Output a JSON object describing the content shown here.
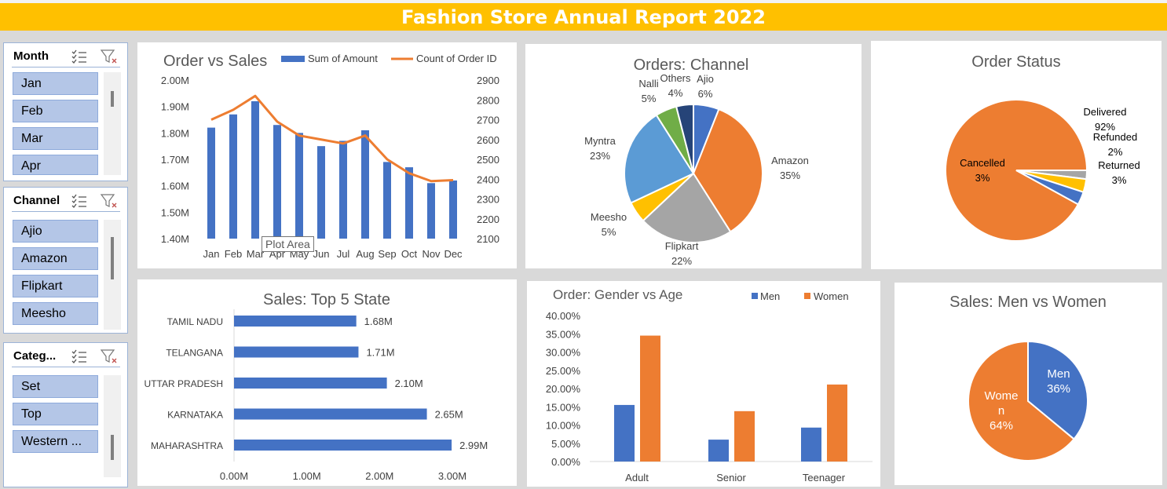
{
  "title": "Fashion Store Annual Report 2022",
  "slicers": [
    {
      "title": "Month",
      "items": [
        "Jan",
        "Feb",
        "Mar",
        "Apr"
      ]
    },
    {
      "title": "Channel",
      "items": [
        "Ajio",
        "Amazon",
        "Flipkart",
        "Meesho"
      ]
    },
    {
      "title": "Categ...",
      "items": [
        "Set",
        "Top",
        "Western ..."
      ]
    }
  ],
  "tooltip": "Plot Area",
  "colors": {
    "blue": "#4472c4",
    "orange": "#ed7d31",
    "gray": "#a5a5a5",
    "yellow": "#ffc000",
    "lightblue": "#5b9bd5",
    "green": "#70ad47",
    "navy": "#264478",
    "banner": "#ffc000"
  },
  "chart_data": [
    {
      "type": "bar+line",
      "title": "Order vs Sales",
      "categories": [
        "Jan",
        "Feb",
        "Mar",
        "Apr",
        "May",
        "Jun",
        "Jul",
        "Aug",
        "Sep",
        "Oct",
        "Nov",
        "Dec"
      ],
      "series": [
        {
          "name": "Sum of Amount",
          "type": "bar",
          "axis": "left",
          "values": [
            1.82,
            1.87,
            1.92,
            1.83,
            1.8,
            1.75,
            1.77,
            1.81,
            1.69,
            1.67,
            1.61,
            1.62
          ]
        },
        {
          "name": "Count of Order ID",
          "type": "line",
          "axis": "right",
          "values": [
            2700,
            2750,
            2820,
            2690,
            2620,
            2600,
            2580,
            2620,
            2500,
            2430,
            2390,
            2395
          ]
        }
      ],
      "left_ticks": [
        "1.40M",
        "1.50M",
        "1.60M",
        "1.70M",
        "1.80M",
        "1.90M",
        "2.00M"
      ],
      "right_ticks": [
        "2100",
        "2200",
        "2300",
        "2400",
        "2500",
        "2600",
        "2700",
        "2800",
        "2900"
      ],
      "ylim": [
        1.4,
        2.0
      ],
      "y2lim": [
        2100,
        2900
      ]
    },
    {
      "type": "pie",
      "title": "Orders: Channel",
      "slices": [
        {
          "name": "Ajio",
          "value": 6,
          "label": "6%"
        },
        {
          "name": "Amazon",
          "value": 35,
          "label": "35%"
        },
        {
          "name": "Flipkart",
          "value": 22,
          "label": "22%"
        },
        {
          "name": "Meesho",
          "value": 5,
          "label": "5%"
        },
        {
          "name": "Myntra",
          "value": 23,
          "label": "23%"
        },
        {
          "name": "Nalli",
          "value": 5,
          "label": "5%"
        },
        {
          "name": "Others",
          "value": 4,
          "label": "4%"
        }
      ]
    },
    {
      "type": "pie",
      "title": "Order Status",
      "slices": [
        {
          "name": "Delivered",
          "value": 92,
          "label": "92%"
        },
        {
          "name": "Refunded",
          "value": 2,
          "label": "2%"
        },
        {
          "name": "Returned",
          "value": 3,
          "label": "3%"
        },
        {
          "name": "Cancelled",
          "value": 3,
          "label": "3%"
        }
      ]
    },
    {
      "type": "bar",
      "orientation": "horizontal",
      "title": "Sales: Top 5 State",
      "categories": [
        "TAMIL NADU",
        "TELANGANA",
        "UTTAR PRADESH",
        "KARNATAKA",
        "MAHARASHTRA"
      ],
      "values": [
        1.68,
        1.71,
        2.1,
        2.65,
        2.99
      ],
      "labels": [
        "1.68M",
        "1.71M",
        "2.10M",
        "2.65M",
        "2.99M"
      ],
      "x_ticks": [
        "0.00M",
        "1.00M",
        "2.00M",
        "3.00M"
      ],
      "xlim": [
        0,
        3.0
      ]
    },
    {
      "type": "bar",
      "title": "Order: Gender vs Age",
      "categories": [
        "Adult",
        "Senior",
        "Teenager"
      ],
      "series": [
        {
          "name": "Men",
          "values": [
            15.5,
            6.0,
            9.3
          ]
        },
        {
          "name": "Women",
          "values": [
            34.5,
            13.8,
            21.1
          ]
        }
      ],
      "y_ticks": [
        "0.00%",
        "5.00%",
        "10.00%",
        "15.00%",
        "20.00%",
        "25.00%",
        "30.00%",
        "35.00%",
        "40.00%"
      ],
      "ylim": [
        0,
        40
      ]
    },
    {
      "type": "pie",
      "title": "Sales: Men vs Women",
      "slices": [
        {
          "name": "Men",
          "value": 36,
          "label": "36%"
        },
        {
          "name": "Wome\nn",
          "value": 64,
          "label": "64%"
        }
      ]
    }
  ]
}
